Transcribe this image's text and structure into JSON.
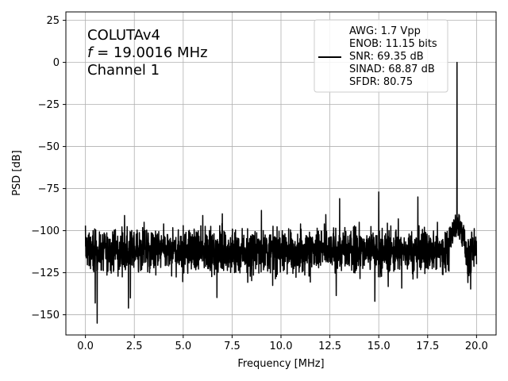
{
  "chart_data": {
    "type": "line",
    "title": "",
    "xlabel": "Frequency [MHz]",
    "ylabel": "PSD [dB]",
    "xlim": [
      -1.0,
      21.0
    ],
    "ylim": [
      -162,
      30
    ],
    "x_ticks": [
      0.0,
      2.5,
      5.0,
      7.5,
      10.0,
      12.5,
      15.0,
      17.5,
      20.0
    ],
    "x_tick_labels": [
      "0.0",
      "2.5",
      "5.0",
      "7.5",
      "10.0",
      "12.5",
      "15.0",
      "17.5",
      "20.0"
    ],
    "y_ticks": [
      25,
      0,
      -25,
      -50,
      -75,
      -100,
      -125,
      -150
    ],
    "y_tick_labels": [
      "25",
      "0",
      "−25",
      "−50",
      "−75",
      "−100",
      "−125",
      "−150"
    ],
    "grid": true,
    "legend_position": "top-right",
    "annotation_lines": [
      "COLUTAv4",
      "= 19.0016 MHz",
      "Channel 1"
    ],
    "annotation_f_symbol": "f",
    "series": [
      {
        "name": "",
        "color": "#000000",
        "legend_lines": [
          "AWG: 1.7 Vpp",
          "ENOB: 11.15 bits",
          "SNR: 69.35 dB",
          "SINAD: 68.87 dB",
          "SFDR: 80.75"
        ],
        "noise_floor": -112,
        "spurs": [
          {
            "x": 0.0,
            "y": -97
          },
          {
            "x": 0.6,
            "y": -155
          },
          {
            "x": 0.5,
            "y": -143
          },
          {
            "x": 2.0,
            "y": -91
          },
          {
            "x": 2.2,
            "y": -146
          },
          {
            "x": 2.3,
            "y": -140
          },
          {
            "x": 3.0,
            "y": -95
          },
          {
            "x": 4.0,
            "y": -96
          },
          {
            "x": 5.0,
            "y": -97
          },
          {
            "x": 6.0,
            "y": -91
          },
          {
            "x": 7.0,
            "y": -90
          },
          {
            "x": 9.0,
            "y": -88
          },
          {
            "x": 11.0,
            "y": -96
          },
          {
            "x": 13.0,
            "y": -81
          },
          {
            "x": 14.0,
            "y": -95
          },
          {
            "x": 14.8,
            "y": -142
          },
          {
            "x": 15.0,
            "y": -77
          },
          {
            "x": 16.0,
            "y": -93
          },
          {
            "x": 17.0,
            "y": -80
          },
          {
            "x": 18.0,
            "y": -95
          },
          {
            "x": 19.0016,
            "y": 0
          }
        ]
      }
    ]
  }
}
